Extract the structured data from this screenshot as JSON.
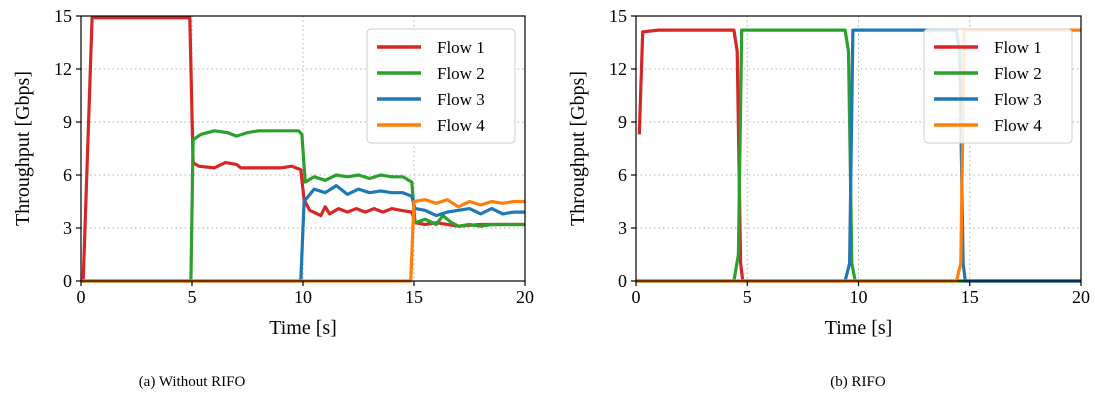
{
  "chart_data": [
    {
      "type": "line",
      "caption": "(a) Without RIFO",
      "xlabel": "Time [s]",
      "ylabel": "Throughput [Gbps]",
      "xlim": [
        0,
        20
      ],
      "ylim": [
        0,
        15
      ],
      "xticks": [
        0,
        5,
        10,
        15,
        20
      ],
      "yticks": [
        0,
        3,
        6,
        9,
        12,
        15
      ],
      "grid": "dotted",
      "legend": "top-right",
      "series": [
        {
          "name": "Flow 1",
          "color": "#d62728",
          "points": [
            [
              0,
              0
            ],
            [
              0.1,
              0
            ],
            [
              0.5,
              14.9
            ],
            [
              4.9,
              14.9
            ],
            [
              5.05,
              6.7
            ],
            [
              5.3,
              6.5
            ],
            [
              6,
              6.4
            ],
            [
              6.5,
              6.7
            ],
            [
              7,
              6.6
            ],
            [
              7.2,
              6.4
            ],
            [
              8,
              6.4
            ],
            [
              9,
              6.4
            ],
            [
              9.5,
              6.5
            ],
            [
              9.9,
              6.3
            ],
            [
              10.05,
              4.6
            ],
            [
              10.3,
              4.0
            ],
            [
              10.8,
              3.7
            ],
            [
              11,
              4.2
            ],
            [
              11.2,
              3.8
            ],
            [
              11.6,
              4.1
            ],
            [
              12,
              3.9
            ],
            [
              12.4,
              4.1
            ],
            [
              12.8,
              3.9
            ],
            [
              13.2,
              4.1
            ],
            [
              13.6,
              3.9
            ],
            [
              14,
              4.1
            ],
            [
              14.4,
              4.0
            ],
            [
              14.9,
              3.9
            ],
            [
              15.05,
              3.3
            ],
            [
              15.5,
              3.2
            ],
            [
              16,
              3.3
            ],
            [
              16.5,
              3.2
            ],
            [
              17,
              3.1
            ],
            [
              18,
              3.2
            ],
            [
              19,
              3.2
            ],
            [
              20,
              3.2
            ]
          ]
        },
        {
          "name": "Flow 2",
          "color": "#2ca02c",
          "points": [
            [
              0,
              0
            ],
            [
              4.95,
              0
            ],
            [
              5.05,
              8.0
            ],
            [
              5.4,
              8.3
            ],
            [
              6,
              8.5
            ],
            [
              6.6,
              8.4
            ],
            [
              7,
              8.2
            ],
            [
              7.5,
              8.4
            ],
            [
              8,
              8.5
            ],
            [
              9,
              8.5
            ],
            [
              9.8,
              8.5
            ],
            [
              9.95,
              8.3
            ],
            [
              10.1,
              5.6
            ],
            [
              10.5,
              5.9
            ],
            [
              11,
              5.7
            ],
            [
              11.5,
              6.0
            ],
            [
              12,
              5.9
            ],
            [
              12.5,
              6.0
            ],
            [
              13,
              5.8
            ],
            [
              13.5,
              6.0
            ],
            [
              14,
              5.9
            ],
            [
              14.5,
              5.9
            ],
            [
              14.9,
              5.6
            ],
            [
              15.05,
              3.3
            ],
            [
              15.5,
              3.5
            ],
            [
              16,
              3.2
            ],
            [
              16.3,
              3.7
            ],
            [
              16.7,
              3.3
            ],
            [
              17,
              3.1
            ],
            [
              17.5,
              3.2
            ],
            [
              18,
              3.1
            ],
            [
              18.5,
              3.2
            ],
            [
              19,
              3.2
            ],
            [
              20,
              3.2
            ]
          ]
        },
        {
          "name": "Flow 3",
          "color": "#1f77b4",
          "points": [
            [
              0,
              0
            ],
            [
              9.9,
              0
            ],
            [
              10.05,
              4.5
            ],
            [
              10.5,
              5.2
            ],
            [
              11,
              5.0
            ],
            [
              11.5,
              5.4
            ],
            [
              12,
              4.9
            ],
            [
              12.5,
              5.2
            ],
            [
              13,
              5.0
            ],
            [
              13.5,
              5.1
            ],
            [
              14,
              5.0
            ],
            [
              14.5,
              5.0
            ],
            [
              14.9,
              4.8
            ],
            [
              15.05,
              4.1
            ],
            [
              15.5,
              4.0
            ],
            [
              16,
              3.7
            ],
            [
              16.5,
              3.9
            ],
            [
              17,
              4.0
            ],
            [
              17.5,
              4.1
            ],
            [
              18,
              3.8
            ],
            [
              18.5,
              4.1
            ],
            [
              19,
              3.8
            ],
            [
              19.5,
              3.9
            ],
            [
              20,
              3.9
            ]
          ]
        },
        {
          "name": "Flow 4",
          "color": "#ff7f0e",
          "points": [
            [
              0,
              0
            ],
            [
              14.85,
              0
            ],
            [
              15.0,
              4.5
            ],
            [
              15.5,
              4.6
            ],
            [
              16,
              4.4
            ],
            [
              16.5,
              4.6
            ],
            [
              17,
              4.2
            ],
            [
              17.5,
              4.5
            ],
            [
              18,
              4.3
            ],
            [
              18.5,
              4.5
            ],
            [
              19,
              4.4
            ],
            [
              19.5,
              4.5
            ],
            [
              20,
              4.5
            ]
          ]
        }
      ]
    },
    {
      "type": "line",
      "caption": "(b) RIFO",
      "xlabel": "Time [s]",
      "ylabel": "Throughput [Gbps]",
      "xlim": [
        0,
        20
      ],
      "ylim": [
        0,
        15
      ],
      "xticks": [
        0,
        5,
        10,
        15,
        20
      ],
      "yticks": [
        0,
        3,
        6,
        9,
        12,
        15
      ],
      "grid": "dotted",
      "legend": "top-right",
      "series": [
        {
          "name": "Flow 1",
          "color": "#d62728",
          "points": [
            [
              0.15,
              8.3
            ],
            [
              0.3,
              14.1
            ],
            [
              1,
              14.2
            ],
            [
              2,
              14.2
            ],
            [
              3,
              14.2
            ],
            [
              4,
              14.2
            ],
            [
              4.4,
              14.2
            ],
            [
              4.55,
              13.0
            ],
            [
              4.7,
              1.0
            ],
            [
              4.8,
              0
            ],
            [
              20,
              0
            ]
          ]
        },
        {
          "name": "Flow 2",
          "color": "#2ca02c",
          "points": [
            [
              0,
              0
            ],
            [
              4.4,
              0
            ],
            [
              4.6,
              1.5
            ],
            [
              4.75,
              14.2
            ],
            [
              6,
              14.2
            ],
            [
              7,
              14.2
            ],
            [
              8,
              14.2
            ],
            [
              9,
              14.2
            ],
            [
              9.4,
              14.2
            ],
            [
              9.55,
              13.0
            ],
            [
              9.7,
              1.0
            ],
            [
              9.85,
              0
            ],
            [
              20,
              0
            ]
          ]
        },
        {
          "name": "Flow 3",
          "color": "#1f77b4",
          "points": [
            [
              0,
              0
            ],
            [
              9.4,
              0
            ],
            [
              9.6,
              1.0
            ],
            [
              9.75,
              14.2
            ],
            [
              11,
              14.2
            ],
            [
              12,
              14.2
            ],
            [
              13,
              14.2
            ],
            [
              14,
              14.2
            ],
            [
              14.4,
              14.2
            ],
            [
              14.55,
              13.0
            ],
            [
              14.7,
              1.0
            ],
            [
              14.8,
              0
            ],
            [
              20,
              0
            ]
          ]
        },
        {
          "name": "Flow 4",
          "color": "#ff7f0e",
          "points": [
            [
              0,
              0
            ],
            [
              14.4,
              0
            ],
            [
              14.6,
              1.0
            ],
            [
              14.75,
              14.2
            ],
            [
              16,
              14.2
            ],
            [
              17,
              14.2
            ],
            [
              18,
              14.2
            ],
            [
              19,
              14.2
            ],
            [
              20,
              14.2
            ]
          ]
        }
      ]
    }
  ]
}
